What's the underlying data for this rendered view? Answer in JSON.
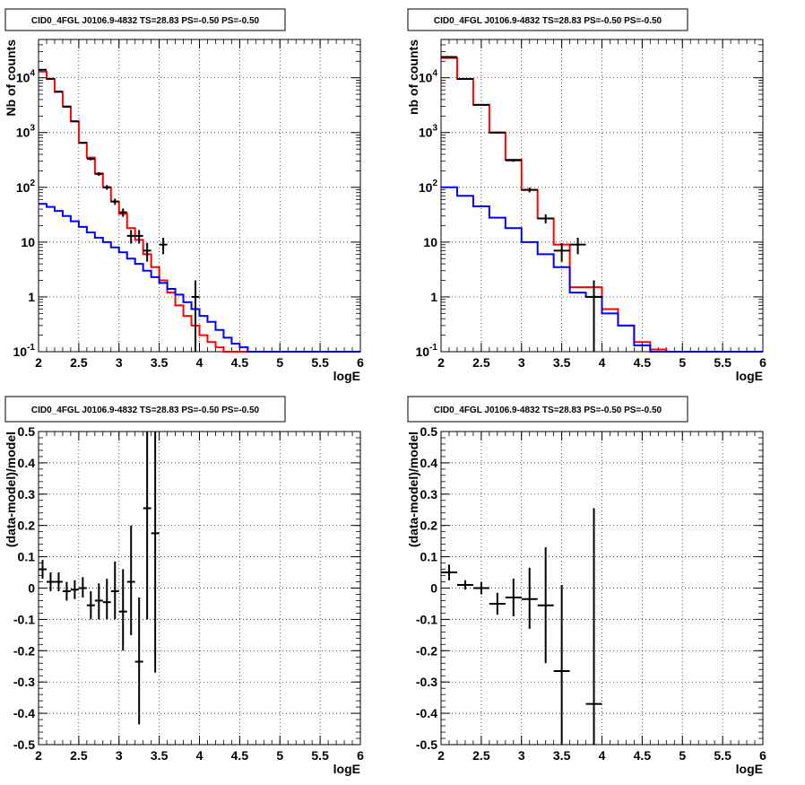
{
  "chart_data": [
    {
      "type": "step-histogram-with-errorbars",
      "title": "CID0_4FGL J0106.9-4832 TS=28.83 PS=-0.50 PS=-0.50",
      "xlabel": "logE",
      "ylabel": "Nb of counts",
      "yscale": "log",
      "xlim": [
        2,
        6
      ],
      "ylim": [
        0.1,
        50000
      ],
      "grid": true,
      "x_ticks": [
        "2",
        "2.5",
        "3",
        "3.5",
        "4",
        "4.5",
        "5",
        "5.5",
        "6"
      ],
      "y_ticks": [
        {
          "v": 0.1,
          "label": "10^-1"
        },
        {
          "v": 1,
          "label": "1"
        },
        {
          "v": 10,
          "label": "10"
        },
        {
          "v": 100,
          "label": "10^2"
        },
        {
          "v": 1000,
          "label": "10^3"
        },
        {
          "v": 10000,
          "label": "10^4"
        }
      ],
      "bin_edges": [
        2.0,
        2.1,
        2.2,
        2.3,
        2.4,
        2.5,
        2.6,
        2.7,
        2.8,
        2.9,
        3.0,
        3.1,
        3.2,
        3.3,
        3.4,
        3.5,
        3.6,
        3.7,
        3.8,
        3.9,
        4.0,
        4.1,
        4.2,
        4.3,
        4.4,
        4.5,
        4.6,
        4.7,
        4.8,
        4.9,
        5.0,
        5.1,
        5.2,
        5.3,
        5.4,
        5.5,
        5.6,
        5.7,
        5.8,
        5.9,
        6.0
      ],
      "series": [
        {
          "color": "#ff0000",
          "values": [
            13000,
            9500,
            5500,
            3000,
            1600,
            650,
            350,
            180,
            100,
            55,
            33,
            18,
            11,
            6,
            3.5,
            2,
            1.2,
            0.7,
            0.45,
            0.3,
            0.2,
            0.15,
            0.12,
            0.1,
            0.1,
            0.1,
            0.1,
            0.1,
            0.1,
            0.1,
            0.1,
            0.1,
            0.1,
            0.1,
            0.1,
            0.1,
            0.1,
            0.1,
            0.1,
            0.1
          ]
        },
        {
          "color": "#0000ff",
          "values": [
            50,
            44,
            37,
            30,
            24,
            19,
            15,
            12,
            10,
            8,
            6.5,
            5,
            4,
            3,
            2.3,
            1.8,
            1.4,
            1.1,
            0.8,
            0.6,
            0.45,
            0.35,
            0.25,
            0.18,
            0.14,
            0.12,
            0.1,
            0.1,
            0.1,
            0.1,
            0.1,
            0.1,
            0.1,
            0.1,
            0.1,
            0.1,
            0.1,
            0.1,
            0.1,
            0.1
          ]
        }
      ],
      "points": [
        {
          "x": 2.05,
          "y": 14000,
          "ex": 0.05,
          "eylo": 13880,
          "eyhi": 14120
        },
        {
          "x": 2.15,
          "y": 9600,
          "ex": 0.05,
          "eylo": 9500,
          "eyhi": 9700
        },
        {
          "x": 2.25,
          "y": 5600,
          "ex": 0.05,
          "eylo": 5525,
          "eyhi": 5675
        },
        {
          "x": 2.35,
          "y": 2950,
          "ex": 0.05,
          "eylo": 2895,
          "eyhi": 3005
        },
        {
          "x": 2.45,
          "y": 1600,
          "ex": 0.05,
          "eylo": 1560,
          "eyhi": 1640
        },
        {
          "x": 2.55,
          "y": 650,
          "ex": 0.05,
          "eylo": 625,
          "eyhi": 675
        },
        {
          "x": 2.65,
          "y": 330,
          "ex": 0.05,
          "eylo": 312,
          "eyhi": 348
        },
        {
          "x": 2.75,
          "y": 175,
          "ex": 0.05,
          "eylo": 162,
          "eyhi": 188
        },
        {
          "x": 2.85,
          "y": 100,
          "ex": 0.05,
          "eylo": 90,
          "eyhi": 110
        },
        {
          "x": 2.95,
          "y": 55,
          "ex": 0.05,
          "eylo": 48,
          "eyhi": 62
        },
        {
          "x": 3.05,
          "y": 35,
          "ex": 0.05,
          "eylo": 29,
          "eyhi": 41
        },
        {
          "x": 3.15,
          "y": 13,
          "ex": 0.05,
          "eylo": 9.4,
          "eyhi": 16.6
        },
        {
          "x": 3.25,
          "y": 13,
          "ex": 0.05,
          "eylo": 9.4,
          "eyhi": 16.6
        },
        {
          "x": 3.35,
          "y": 7,
          "ex": 0.05,
          "eylo": 4.4,
          "eyhi": 9.6
        },
        {
          "x": 3.55,
          "y": 9,
          "ex": 0.05,
          "eylo": 6,
          "eyhi": 12
        },
        {
          "x": 3.95,
          "y": 1,
          "ex": 0.05,
          "eylo": 0.05,
          "eyhi": 2
        }
      ]
    },
    {
      "type": "step-histogram-with-errorbars",
      "title": "CID0_4FGL J0106.9-4832 TS=28.83 PS=-0.50 PS=-0.50",
      "xlabel": "logE",
      "ylabel": "nb of counts",
      "yscale": "log",
      "xlim": [
        2,
        6
      ],
      "ylim": [
        0.1,
        50000
      ],
      "grid": true,
      "x_ticks": [
        "2",
        "2.5",
        "3",
        "3.5",
        "4",
        "4.5",
        "5",
        "5.5",
        "6"
      ],
      "y_ticks": [
        {
          "v": 0.1,
          "label": "10^-1"
        },
        {
          "v": 1,
          "label": "1"
        },
        {
          "v": 10,
          "label": "10"
        },
        {
          "v": 100,
          "label": "10^2"
        },
        {
          "v": 1000,
          "label": "10^3"
        },
        {
          "v": 10000,
          "label": "10^4"
        }
      ],
      "bin_edges": [
        2.0,
        2.2,
        2.4,
        2.6,
        2.8,
        3.0,
        3.2,
        3.4,
        3.6,
        3.8,
        4.0,
        4.2,
        4.4,
        4.6,
        4.8,
        5.0,
        5.2,
        5.4,
        5.6,
        5.8,
        6.0
      ],
      "series": [
        {
          "color": "#ff0000",
          "values": [
            23000,
            9500,
            3200,
            1000,
            320,
            90,
            27,
            9,
            1.5,
            1.5,
            0.6,
            0.3,
            0.15,
            0.11,
            0.1,
            0.1,
            0.1,
            0.1,
            0.1,
            0.1
          ]
        },
        {
          "color": "#0000ff",
          "values": [
            100,
            70,
            45,
            28,
            18,
            10,
            6,
            3.5,
            1.2,
            1.0,
            0.5,
            0.3,
            0.13,
            0.1,
            0.1,
            0.1,
            0.1,
            0.1,
            0.1,
            0.1
          ]
        }
      ],
      "points": [
        {
          "x": 2.1,
          "y": 24000,
          "ex": 0.1,
          "eylo": 23800,
          "eyhi": 24200
        },
        {
          "x": 2.3,
          "y": 9500,
          "ex": 0.1,
          "eylo": 9400,
          "eyhi": 9600
        },
        {
          "x": 2.5,
          "y": 3200,
          "ex": 0.1,
          "eylo": 3140,
          "eyhi": 3260
        },
        {
          "x": 2.7,
          "y": 1000,
          "ex": 0.1,
          "eylo": 970,
          "eyhi": 1030
        },
        {
          "x": 2.9,
          "y": 310,
          "ex": 0.1,
          "eylo": 293,
          "eyhi": 327
        },
        {
          "x": 3.1,
          "y": 90,
          "ex": 0.1,
          "eylo": 81,
          "eyhi": 99
        },
        {
          "x": 3.3,
          "y": 27,
          "ex": 0.1,
          "eylo": 22,
          "eyhi": 32
        },
        {
          "x": 3.5,
          "y": 7,
          "ex": 0.1,
          "eylo": 4.4,
          "eyhi": 9.6
        },
        {
          "x": 3.7,
          "y": 9,
          "ex": 0.1,
          "eylo": 6,
          "eyhi": 12
        },
        {
          "x": 3.9,
          "y": 1,
          "ex": 0.1,
          "eylo": 0.05,
          "eyhi": 2
        }
      ]
    },
    {
      "type": "scatter-errorbars",
      "title": "CID0_4FGL J0106.9-4832 TS=28.83 PS=-0.50 PS=-0.50",
      "xlabel": "logE",
      "ylabel": "(data-model)/model",
      "yscale": "linear",
      "xlim": [
        2,
        6
      ],
      "ylim": [
        -0.5,
        0.5
      ],
      "grid": true,
      "x_ticks": [
        "2",
        "2.5",
        "3",
        "3.5",
        "4",
        "4.5",
        "5",
        "5.5",
        "6"
      ],
      "y_ticks": [
        {
          "v": -0.5,
          "label": "-0.5"
        },
        {
          "v": -0.4,
          "label": "-0.4"
        },
        {
          "v": -0.3,
          "label": "-0.3"
        },
        {
          "v": -0.2,
          "label": "-0.2"
        },
        {
          "v": -0.1,
          "label": "-0.1"
        },
        {
          "v": 0,
          "label": "0"
        },
        {
          "v": 0.1,
          "label": "0.1"
        },
        {
          "v": 0.2,
          "label": "0.2"
        },
        {
          "v": 0.3,
          "label": "0.3"
        },
        {
          "v": 0.4,
          "label": "0.4"
        },
        {
          "v": 0.5,
          "label": "0.5"
        }
      ],
      "points": [
        {
          "x": 2.05,
          "y": 0.06,
          "ex": 0.05,
          "eylo": 0.03,
          "eyhi": 0.09
        },
        {
          "x": 2.15,
          "y": 0.02,
          "ex": 0.05,
          "eylo": -0.01,
          "eyhi": 0.05
        },
        {
          "x": 2.25,
          "y": 0.02,
          "ex": 0.05,
          "eylo": -0.01,
          "eyhi": 0.05
        },
        {
          "x": 2.35,
          "y": -0.01,
          "ex": 0.05,
          "eylo": -0.04,
          "eyhi": 0.02
        },
        {
          "x": 2.45,
          "y": -0.005,
          "ex": 0.05,
          "eylo": -0.035,
          "eyhi": 0.025
        },
        {
          "x": 2.55,
          "y": 0.0,
          "ex": 0.05,
          "eylo": -0.03,
          "eyhi": 0.035
        },
        {
          "x": 2.65,
          "y": -0.055,
          "ex": 0.05,
          "eylo": -0.1,
          "eyhi": -0.01
        },
        {
          "x": 2.75,
          "y": -0.04,
          "ex": 0.05,
          "eylo": -0.1,
          "eyhi": 0.015
        },
        {
          "x": 2.85,
          "y": -0.045,
          "ex": 0.05,
          "eylo": -0.1,
          "eyhi": 0.03
        },
        {
          "x": 2.95,
          "y": -0.01,
          "ex": 0.05,
          "eylo": -0.1,
          "eyhi": 0.085
        },
        {
          "x": 3.05,
          "y": -0.075,
          "ex": 0.05,
          "eylo": -0.2,
          "eyhi": 0.06
        },
        {
          "x": 3.15,
          "y": 0.02,
          "ex": 0.05,
          "eylo": -0.15,
          "eyhi": 0.2
        },
        {
          "x": 3.25,
          "y": -0.235,
          "ex": 0.05,
          "eylo": -0.435,
          "eyhi": -0.03
        },
        {
          "x": 3.35,
          "y": 0.255,
          "ex": 0.05,
          "eylo": -0.1,
          "eyhi": 0.5
        },
        {
          "x": 3.45,
          "y": 0.175,
          "ex": 0.05,
          "eylo": -0.27,
          "eyhi": 0.5
        }
      ]
    },
    {
      "type": "scatter-errorbars",
      "title": "CID0_4FGL J0106.9-4832 TS=28.83 PS=-0.50 PS=-0.50",
      "xlabel": "logE",
      "ylabel": "(data-model)/model",
      "yscale": "linear",
      "xlim": [
        2,
        6
      ],
      "ylim": [
        -0.5,
        0.5
      ],
      "grid": true,
      "x_ticks": [
        "2",
        "2.5",
        "3",
        "3.5",
        "4",
        "4.5",
        "5",
        "5.5",
        "6"
      ],
      "y_ticks": [
        {
          "v": -0.5,
          "label": "-0.5"
        },
        {
          "v": -0.4,
          "label": "-0.4"
        },
        {
          "v": -0.3,
          "label": "-0.3"
        },
        {
          "v": -0.2,
          "label": "-0.2"
        },
        {
          "v": -0.1,
          "label": "-0.1"
        },
        {
          "v": 0,
          "label": "0"
        },
        {
          "v": 0.1,
          "label": "0.1"
        },
        {
          "v": 0.2,
          "label": "0.2"
        },
        {
          "v": 0.3,
          "label": "0.3"
        },
        {
          "v": 0.4,
          "label": "0.4"
        },
        {
          "v": 0.5,
          "label": "0.5"
        }
      ],
      "points": [
        {
          "x": 2.1,
          "y": 0.05,
          "ex": 0.1,
          "eylo": 0.025,
          "eyhi": 0.075
        },
        {
          "x": 2.3,
          "y": 0.01,
          "ex": 0.1,
          "eylo": -0.005,
          "eyhi": 0.025
        },
        {
          "x": 2.5,
          "y": 0.0,
          "ex": 0.1,
          "eylo": -0.02,
          "eyhi": 0.02
        },
        {
          "x": 2.7,
          "y": -0.05,
          "ex": 0.1,
          "eylo": -0.085,
          "eyhi": -0.015
        },
        {
          "x": 2.9,
          "y": -0.03,
          "ex": 0.1,
          "eylo": -0.09,
          "eyhi": 0.03
        },
        {
          "x": 3.1,
          "y": -0.035,
          "ex": 0.1,
          "eylo": -0.13,
          "eyhi": 0.065
        },
        {
          "x": 3.3,
          "y": -0.055,
          "ex": 0.1,
          "eylo": -0.24,
          "eyhi": 0.13
        },
        {
          "x": 3.5,
          "y": -0.265,
          "ex": 0.1,
          "eylo": -0.5,
          "eyhi": 0.01
        },
        {
          "x": 3.9,
          "y": -0.37,
          "ex": 0.1,
          "eylo": -0.5,
          "eyhi": 0.255
        }
      ]
    }
  ]
}
